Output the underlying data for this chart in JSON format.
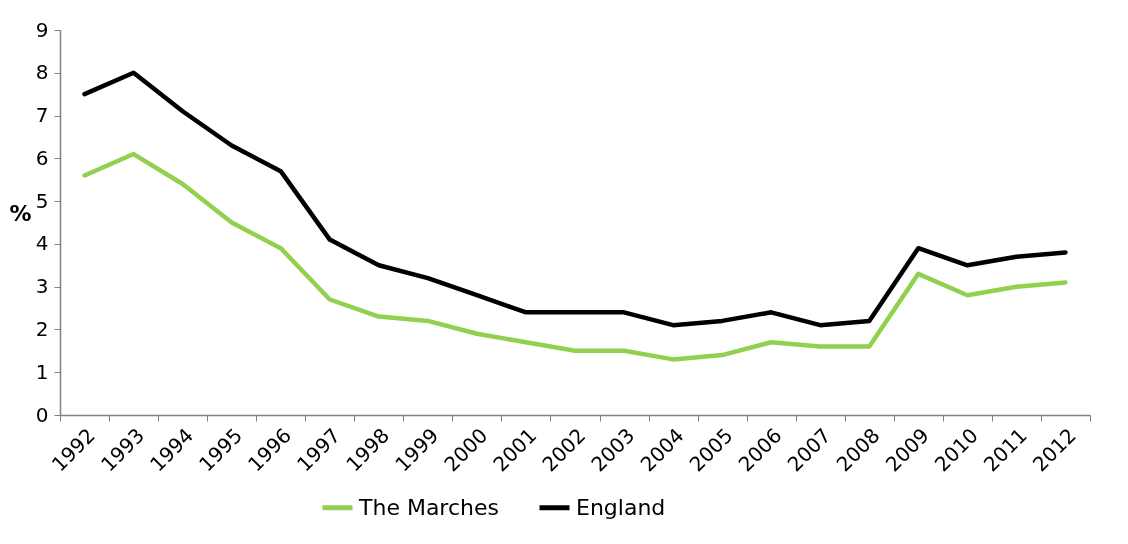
{
  "chart_data": {
    "type": "line",
    "ylabel": "%",
    "categories": [
      "1992",
      "1993",
      "1994",
      "1995",
      "1996",
      "1997",
      "1998",
      "1999",
      "2000",
      "2001",
      "2002",
      "2003",
      "2004",
      "2005",
      "2006",
      "2007",
      "2008",
      "2009",
      "2010",
      "2011",
      "2012"
    ],
    "series": [
      {
        "name": "The Marches",
        "color": "#92d050",
        "values": [
          5.6,
          6.1,
          5.4,
          4.5,
          3.9,
          2.7,
          2.3,
          2.2,
          1.9,
          1.7,
          1.5,
          1.5,
          1.3,
          1.4,
          1.7,
          1.6,
          1.6,
          3.3,
          2.8,
          3.0,
          3.1
        ]
      },
      {
        "name": "England",
        "color": "#000000",
        "values": [
          7.5,
          8.0,
          7.1,
          6.3,
          5.7,
          4.1,
          3.5,
          3.2,
          2.8,
          2.4,
          2.4,
          2.4,
          2.1,
          2.2,
          2.4,
          2.1,
          2.2,
          3.9,
          3.5,
          3.7,
          3.8
        ]
      }
    ],
    "ylim": [
      0,
      9
    ],
    "yticks": [
      0,
      1,
      2,
      3,
      4,
      5,
      6,
      7,
      8,
      9
    ],
    "grid": false,
    "legend": "bottom",
    "marker": "none",
    "line_style": "solid"
  }
}
